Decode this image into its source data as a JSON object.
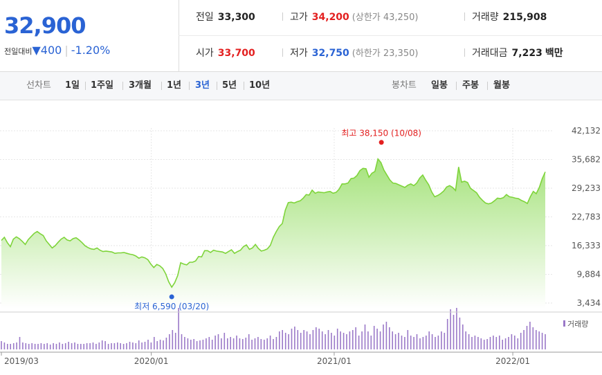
{
  "header": {
    "price": "32,900",
    "change_label": "전일대비",
    "change_arrow": "▼",
    "change_value": "400",
    "change_pct": "-1.20%",
    "prev_close_label": "전일",
    "prev_close": "33,300",
    "high_label": "고가",
    "high": "34,200",
    "upper_limit_label": "(상한가 43,250)",
    "volume_label": "거래량",
    "volume": "215,908",
    "open_label": "시가",
    "open": "33,700",
    "low_label": "저가",
    "low": "32,750",
    "lower_limit_label": "(하한가 23,350)",
    "amount_label": "거래대금",
    "amount": "7,223",
    "amount_unit": "백만"
  },
  "toolbar": {
    "line_chart_label": "선차트",
    "periods": [
      "1일",
      "1주일",
      "3개월",
      "1년",
      "3년",
      "5년",
      "10년"
    ],
    "active_period": "3년",
    "candle_label": "봉차트",
    "candles": [
      "일봉",
      "주봉",
      "월봉"
    ]
  },
  "colors": {
    "up": "#e32020",
    "down": "#2a63d4",
    "line": "#7ed43a",
    "volume": "#9a78c8"
  },
  "chart_data": {
    "type": "area",
    "yticks": [
      42132,
      35682,
      29233,
      22783,
      16333,
      9884,
      3434
    ],
    "ylim": [
      3434,
      42132
    ],
    "xticks": [
      "2019/03",
      "2020/01",
      "2021/01",
      "2022/01"
    ],
    "high_annotation": "최고 38,150 (10/08)",
    "low_annotation": "최저 6,590 (03/20)",
    "volume_legend": "거래량",
    "series": [
      {
        "values": [
          17500,
          18200,
          17000,
          16100,
          17800,
          18300,
          17900,
          17300,
          16600,
          17700,
          18400,
          19100,
          19500,
          19000,
          18600,
          17400,
          16600,
          15800,
          16300,
          17100,
          17800,
          18200,
          17600,
          17400,
          17900,
          18100,
          17600,
          17000,
          16300,
          15900,
          15600,
          15500,
          15800,
          15300,
          15000,
          15100,
          15000,
          14900,
          14600,
          14700,
          14700,
          14800,
          14600,
          14400,
          14300,
          14000,
          13500,
          13800,
          13600,
          13200,
          12200,
          11400,
          12100,
          11800,
          11200,
          10000,
          8200,
          7000,
          8000,
          9600,
          12500,
          12200,
          12000,
          12600,
          12600,
          12900,
          13900,
          13800,
          15200,
          15200,
          14800,
          15300,
          15100,
          15000,
          14900,
          14600,
          15000,
          15400,
          14600,
          15000,
          15300,
          16100,
          16500,
          15500,
          15800,
          16600,
          15700,
          15100,
          15300,
          15600,
          16400,
          18200,
          19500,
          20600,
          21300,
          24300,
          26000,
          26100,
          25900,
          26200,
          26400,
          27000,
          27800,
          27700,
          28800,
          28100,
          28400,
          28300,
          28200,
          28400,
          28500,
          28100,
          28300,
          29000,
          30200,
          30200,
          30400,
          31400,
          31500,
          32100,
          33200,
          33700,
          33600,
          31700,
          32600,
          33000,
          35800,
          35000,
          33300,
          32200,
          31100,
          30400,
          30300,
          30000,
          29700,
          29400,
          29900,
          30200,
          29800,
          30400,
          31500,
          32200,
          31000,
          30000,
          28400,
          27300,
          27600,
          28000,
          28600,
          29500,
          29800,
          29400,
          28700,
          34000,
          30600,
          30800,
          30500,
          29200,
          28700,
          28200,
          27200,
          26500,
          25900,
          25700,
          25900,
          26400,
          27000,
          26900,
          27100,
          27800,
          27300,
          27200,
          27000,
          26900,
          26500,
          26200,
          25800,
          27300,
          28500,
          28000,
          29400,
          31400,
          32900
        ]
      },
      {
        "name": "거래량",
        "values": [
          12,
          10,
          8,
          8,
          9,
          10,
          18,
          10,
          9,
          8,
          9,
          8,
          8,
          9,
          8,
          9,
          7,
          9,
          8,
          10,
          8,
          9,
          11,
          9,
          10,
          8,
          8,
          8,
          9,
          9,
          10,
          8,
          10,
          13,
          12,
          8,
          9,
          9,
          10,
          9,
          8,
          9,
          11,
          10,
          9,
          13,
          10,
          11,
          14,
          10,
          18,
          12,
          14,
          13,
          17,
          22,
          28,
          24,
          60,
          22,
          18,
          16,
          14,
          15,
          12,
          13,
          14,
          16,
          18,
          14,
          20,
          22,
          16,
          24,
          16,
          18,
          16,
          20,
          16,
          15,
          17,
          22,
          14,
          16,
          18,
          15,
          14,
          16,
          20,
          15,
          18,
          26,
          28,
          24,
          22,
          30,
          33,
          28,
          24,
          28,
          26,
          22,
          28,
          32,
          30,
          26,
          22,
          28,
          24,
          20,
          30,
          26,
          24,
          22,
          26,
          28,
          32,
          20,
          26,
          36,
          26,
          20,
          34,
          30,
          26,
          36,
          40,
          32,
          26,
          22,
          24,
          20,
          18,
          28,
          20,
          18,
          22,
          16,
          18,
          20,
          26,
          22,
          18,
          20,
          26,
          24,
          44,
          58,
          50,
          60,
          46,
          36,
          26,
          22,
          18,
          20,
          18,
          16,
          14,
          15,
          18,
          20,
          18,
          20,
          14,
          16,
          18,
          22,
          20,
          16,
          24,
          28,
          34,
          40,
          32,
          28,
          26,
          24,
          22
        ]
      }
    ]
  }
}
